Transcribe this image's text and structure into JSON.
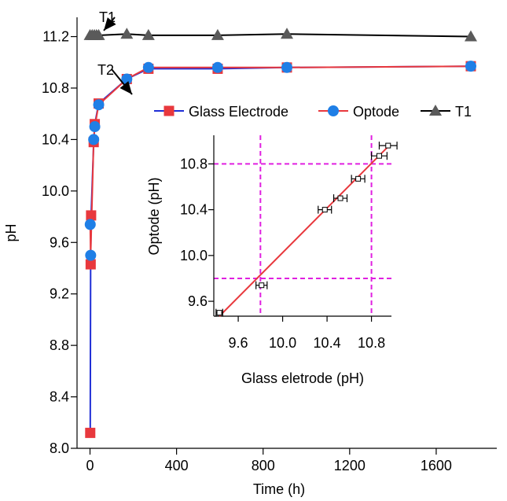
{
  "chart_data": [
    {
      "type": "scatter",
      "xlabel": "Time (h)",
      "ylabel": "pH",
      "xlim": [
        -60,
        1880
      ],
      "ylim": [
        8.0,
        11.35
      ],
      "xticks": [
        0,
        400,
        800,
        1200,
        1600
      ],
      "xtick_labels": [
        "0",
        "400",
        "800",
        "1200",
        "1600"
      ],
      "yticks": [
        8.0,
        8.4,
        8.8,
        9.2,
        9.6,
        10.0,
        10.4,
        10.8,
        11.2
      ],
      "ytick_labels": [
        "8.0",
        "8.4",
        "8.8",
        "9.2",
        "9.6",
        "10.0",
        "10.4",
        "10.8",
        "11.2"
      ],
      "legend_placement": "center-right",
      "series": [
        {
          "name": "Glass Electrode",
          "color": "#e8383d",
          "line_color": "#1f2ed6",
          "marker": "square",
          "x": [
            1,
            3,
            5,
            17,
            22,
            40,
            170,
            270,
            590,
            910,
            1760
          ],
          "y": [
            8.12,
            9.43,
            9.81,
            10.38,
            10.52,
            10.68,
            10.87,
            10.95,
            10.95,
            10.96,
            10.97
          ]
        },
        {
          "name": "Optode",
          "color": "#1f7fe6",
          "line_color": "#e8383d",
          "marker": "circle",
          "x": [
            1,
            3,
            17,
            22,
            40,
            170,
            270,
            590,
            910,
            1760
          ],
          "y": [
            9.74,
            9.5,
            10.4,
            10.5,
            10.67,
            10.87,
            10.96,
            10.96,
            10.96,
            10.97
          ]
        },
        {
          "name": "T1",
          "color": "#5a5a5a",
          "line_color": "#000000",
          "marker": "triangle",
          "x": [
            0,
            10,
            20,
            30,
            40,
            170,
            270,
            590,
            910,
            1760
          ],
          "y": [
            11.21,
            11.21,
            11.21,
            11.21,
            11.21,
            11.22,
            11.21,
            11.21,
            11.22,
            11.2
          ]
        }
      ],
      "annotations": [
        {
          "text": "T1",
          "x": 20,
          "y": 11.21
        },
        {
          "text": "T2",
          "x": 25,
          "y": 10.75
        }
      ]
    },
    {
      "type": "scatter",
      "xlabel": "Glass eletrode (pH)",
      "ylabel": "Optode (pH)",
      "xlim": [
        9.38,
        10.98
      ],
      "ylim": [
        9.47,
        11.05
      ],
      "xticks": [
        9.6,
        10.0,
        10.4,
        10.8
      ],
      "xtick_labels": [
        "9.6",
        "10.0",
        "10.4",
        "10.8"
      ],
      "yticks": [
        9.6,
        10.0,
        10.4,
        10.8
      ],
      "ytick_labels": [
        "9.6",
        "10.0",
        "10.4",
        "10.8"
      ],
      "reference_lines": {
        "vertical": [
          9.8,
          10.8
        ],
        "horizontal": [
          9.8,
          10.8
        ],
        "color": "#e020e0"
      },
      "fit_line": {
        "x": [
          9.43,
          10.97
        ],
        "y": [
          9.47,
          10.97
        ],
        "color": "#e8383d"
      },
      "points": {
        "x": [
          9.43,
          9.81,
          10.38,
          10.52,
          10.68,
          10.87,
          10.95
        ],
        "y": [
          9.5,
          9.74,
          10.4,
          10.5,
          10.67,
          10.87,
          10.96
        ],
        "xerr": [
          0.03,
          0.05,
          0.06,
          0.06,
          0.06,
          0.07,
          0.08
        ]
      }
    }
  ]
}
